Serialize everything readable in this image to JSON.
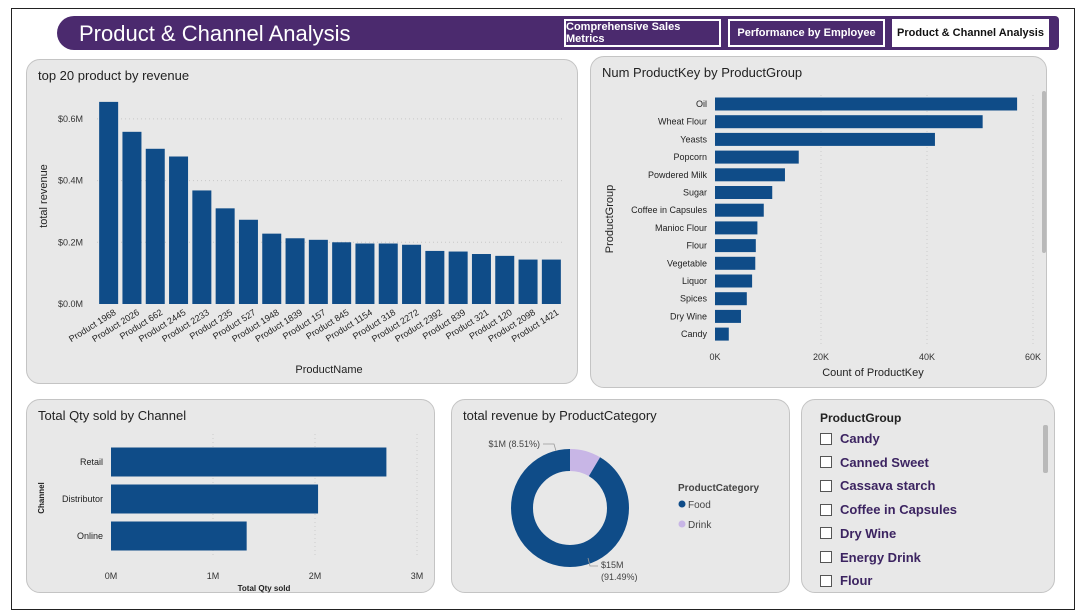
{
  "header": {
    "title": "Product & Channel Analysis",
    "tabs": [
      {
        "label": "Comprehensive Sales Metrics",
        "active": false
      },
      {
        "label": "Performance by Employee",
        "active": false
      },
      {
        "label": "Product & Channel Analysis",
        "active": true
      }
    ]
  },
  "colors": {
    "bar": "#0f4c88",
    "header": "#4b2a6e",
    "donut_food": "#0f4c88",
    "donut_drink": "#c8b6e6"
  },
  "chart_data": [
    {
      "id": "top_products",
      "type": "bar",
      "title": "top 20 product by revenue",
      "xlabel": "ProductName",
      "ylabel": "total revenue",
      "ylim": [
        0,
        700000
      ],
      "yticks": [
        "$0.0M",
        "$0.2M",
        "$0.4M",
        "$0.6M"
      ],
      "categories": [
        "Product 1968",
        "Product 2026",
        "Product 662",
        "Product 2445",
        "Product 2233",
        "Product 235",
        "Product 527",
        "Product 1948",
        "Product 1839",
        "Product 157",
        "Product 845",
        "Product 1154",
        "Product 318",
        "Product 2272",
        "Product 2392",
        "Product 839",
        "Product 321",
        "Product 120",
        "Product 2098",
        "Product 1421"
      ],
      "values": [
        655000,
        558000,
        503000,
        478000,
        368000,
        310000,
        273000,
        228000,
        213000,
        208000,
        200000,
        196000,
        196000,
        192000,
        172000,
        170000,
        162000,
        156000,
        144000,
        144000
      ],
      "grid": true
    },
    {
      "id": "productkey_by_group",
      "type": "bar",
      "orientation": "horizontal",
      "title": "Num ProductKey by ProductGroup",
      "xlabel": "Count of ProductKey",
      "ylabel": "ProductGroup",
      "xlim": [
        0,
        60000
      ],
      "xticks": [
        "0K",
        "20K",
        "40K",
        "60K"
      ],
      "categories": [
        "Oil",
        "Wheat Flour",
        "Yeasts",
        "Popcorn",
        "Powdered Milk",
        "Sugar",
        "Coffee in Capsules",
        "Manioc Flour",
        "Flour",
        "Vegetable",
        "Liquor",
        "Spices",
        "Dry Wine",
        "Candy"
      ],
      "values": [
        57000,
        50500,
        41500,
        15800,
        13200,
        10800,
        9200,
        8000,
        7700,
        7600,
        7000,
        6000,
        4900,
        2600
      ]
    },
    {
      "id": "qty_by_channel",
      "type": "bar",
      "orientation": "horizontal",
      "title": "Total Qty sold by Channel",
      "xlabel": "Total Qty sold",
      "ylabel": "Channel",
      "xlim": [
        0,
        3000000
      ],
      "xticks": [
        "0M",
        "1M",
        "2M",
        "3M"
      ],
      "categories": [
        "Retail",
        "Distributor",
        "Online"
      ],
      "values": [
        2700000,
        2030000,
        1330000
      ]
    },
    {
      "id": "revenue_by_category",
      "type": "pie",
      "donut": true,
      "title": "total revenue by ProductCategory",
      "legend_title": "ProductCategory",
      "slices": [
        {
          "name": "Food",
          "value": 15,
          "label": "$15M",
          "pct": "(91.49%)",
          "pct_value": 91.49
        },
        {
          "name": "Drink",
          "value": 1,
          "label": "$1M (8.51%)",
          "pct_value": 8.51
        }
      ]
    }
  ],
  "slicer": {
    "title": "ProductGroup",
    "items": [
      "Candy",
      "Canned Sweet",
      "Cassava starch",
      "Coffee in Capsules",
      "Dry Wine",
      "Energy Drink",
      "Flour"
    ]
  }
}
